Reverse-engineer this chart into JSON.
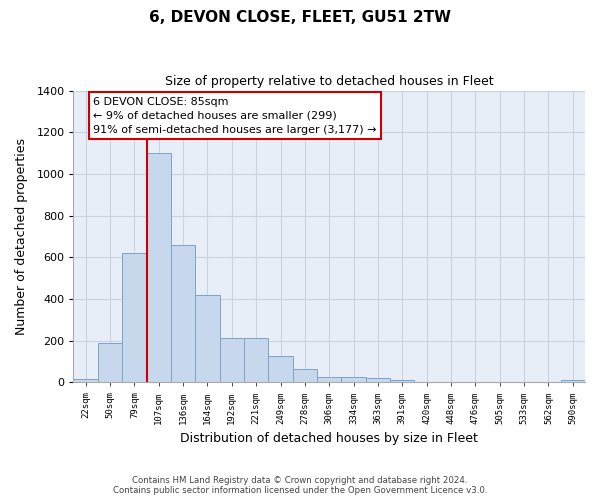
{
  "title": "6, DEVON CLOSE, FLEET, GU51 2TW",
  "subtitle": "Size of property relative to detached houses in Fleet",
  "xlabel": "Distribution of detached houses by size in Fleet",
  "ylabel": "Number of detached properties",
  "bar_color": "#c8d8ec",
  "bar_edge_color": "#7aa4cc",
  "vline_color": "#cc0000",
  "annotation_title": "6 DEVON CLOSE: 85sqm",
  "annotation_line1": "← 9% of detached houses are smaller (299)",
  "annotation_line2": "91% of semi-detached houses are larger (3,177) →",
  "categories": [
    "22sqm",
    "50sqm",
    "79sqm",
    "107sqm",
    "136sqm",
    "164sqm",
    "192sqm",
    "221sqm",
    "249sqm",
    "278sqm",
    "306sqm",
    "334sqm",
    "363sqm",
    "391sqm",
    "420sqm",
    "448sqm",
    "476sqm",
    "505sqm",
    "533sqm",
    "562sqm",
    "590sqm"
  ],
  "bar_heights": [
    15,
    190,
    620,
    1100,
    660,
    420,
    215,
    215,
    125,
    65,
    25,
    25,
    20,
    10,
    0,
    0,
    0,
    0,
    0,
    0,
    10
  ],
  "ylim": [
    0,
    1400
  ],
  "yticks": [
    0,
    200,
    400,
    600,
    800,
    1000,
    1200,
    1400
  ],
  "footer_line1": "Contains HM Land Registry data © Crown copyright and database right 2024.",
  "footer_line2": "Contains public sector information licensed under the Open Government Licence v3.0.",
  "background_color": "#ffffff",
  "plot_bg_color": "#e8eef8",
  "grid_color": "#c8d4e4"
}
